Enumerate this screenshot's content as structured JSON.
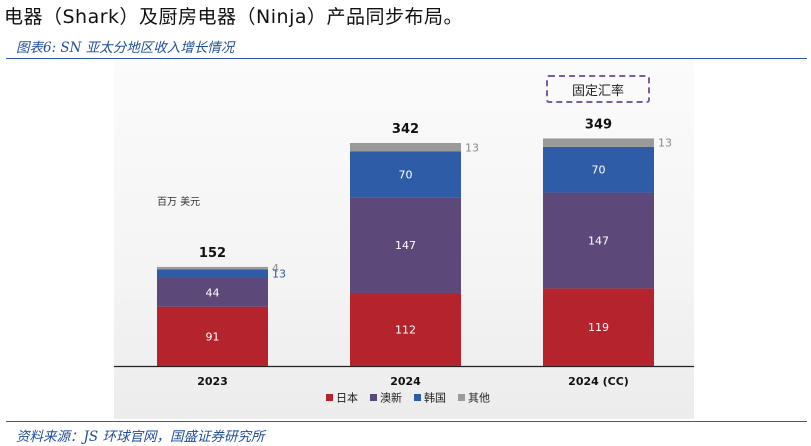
{
  "intro_text": "电器（Shark）及厨房电器（Ninja）产品同步布局。",
  "figure_label": "图表6:  SN 亚太分地区收入增长情况",
  "source_text": "资料来源：JS 环球官网，国盛证券研究所",
  "fx_badge": "固定汇率",
  "colors": {
    "rule": "#2f5aa8",
    "caption": "#1f4e9a"
  },
  "chart_data": {
    "type": "bar",
    "stacked": true,
    "unit_label": "百万 美元",
    "categories": [
      "2023",
      "2024",
      "2024 (CC)"
    ],
    "series": [
      {
        "name": "日本",
        "color": "#b5242c",
        "values": [
          91,
          112,
          119
        ]
      },
      {
        "name": "澳新",
        "color": "#5c497a",
        "values": [
          44,
          147,
          147
        ]
      },
      {
        "name": "韩国",
        "color": "#2e5ca6",
        "values": [
          13,
          70,
          70
        ]
      },
      {
        "name": "其他",
        "color": "#9a9a9a",
        "values": [
          4,
          13,
          13
        ]
      }
    ],
    "totals": [
      152,
      342,
      349
    ],
    "segment_labels": [
      [
        "91",
        "112",
        "119"
      ],
      [
        "44",
        "147",
        "147"
      ],
      [
        "13",
        "70",
        "70"
      ],
      [
        "4",
        "13",
        "13"
      ]
    ],
    "outside_label_series": [
      "韩国",
      "其他"
    ],
    "legend_position": "bottom-center",
    "ylim": [
      0,
      349
    ]
  }
}
